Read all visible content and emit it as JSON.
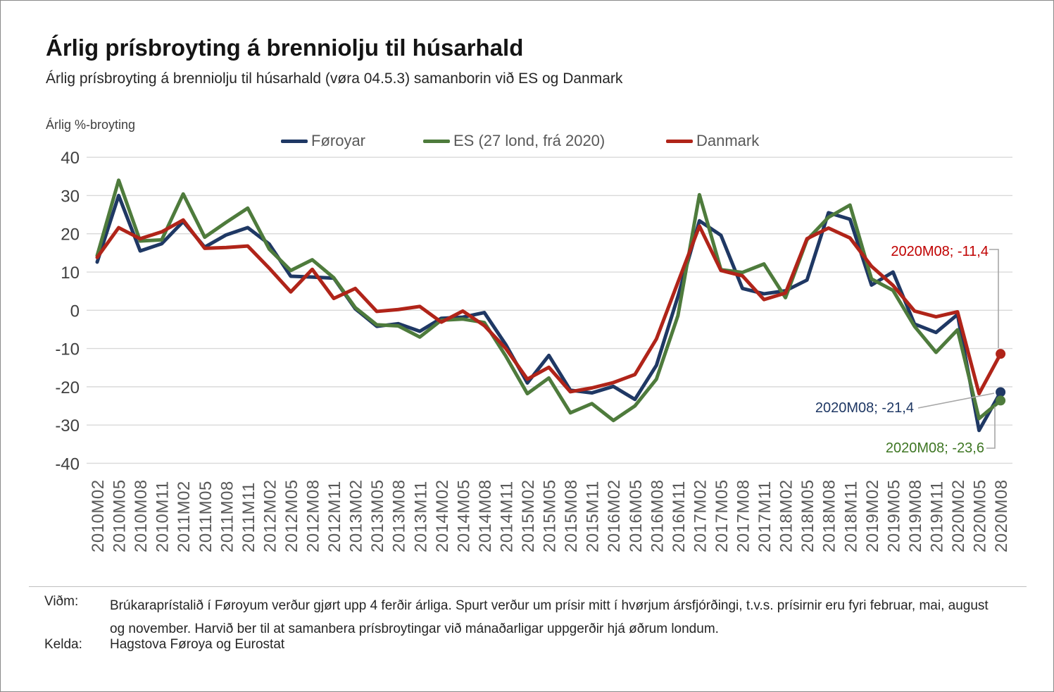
{
  "header": {
    "title": "Árlig prísbroyting á brenniolju til húsarhald",
    "subtitle": "Árlig prísbroyting á brenniolju til húsarhald (vøra 04.5.3) samanborin við ES og Danmark"
  },
  "chart_data": {
    "type": "line",
    "title": "Árlig prísbroyting á brenniolju til húsarhald",
    "ylabel": "Árlig %-broyting",
    "xlabel": "",
    "ylim": [
      -40,
      40
    ],
    "yticks": [
      40,
      30,
      20,
      10,
      0,
      -10,
      -20,
      -30,
      -40
    ],
    "grid": true,
    "legend_position": "top",
    "categories": [
      "2010M02",
      "2010M05",
      "2010M08",
      "2010M11",
      "2011M02",
      "2011M05",
      "2011M08",
      "2011M11",
      "2012M02",
      "2012M05",
      "2012M08",
      "2012M11",
      "2013M02",
      "2013M05",
      "2013M08",
      "2013M11",
      "2014M02",
      "2014M05",
      "2014M08",
      "2014M11",
      "2015M02",
      "2015M05",
      "2015M08",
      "2015M11",
      "2016M02",
      "2016M05",
      "2016M08",
      "2016M11",
      "2017M02",
      "2017M05",
      "2017M08",
      "2017M11",
      "2018M02",
      "2018M05",
      "2018M08",
      "2018M11",
      "2019M02",
      "2019M05",
      "2019M08",
      "2019M11",
      "2020M02",
      "2020M05",
      "2020M08"
    ],
    "series": [
      {
        "name": "Føroyar",
        "color": "#1F3864",
        "values": [
          12.6,
          30.0,
          15.5,
          17.4,
          23.2,
          16.5,
          19.7,
          21.6,
          17.3,
          8.9,
          8.7,
          8.4,
          0.4,
          -4.2,
          -3.5,
          -5.5,
          -2.1,
          -1.8,
          -0.6,
          -9.0,
          -19.0,
          -11.8,
          -20.9,
          -21.6,
          -19.9,
          -23.3,
          -14.4,
          3.6,
          23.4,
          19.6,
          5.7,
          4.3,
          5.1,
          7.9,
          25.5,
          23.8,
          6.6,
          10.0,
          -3.6,
          -5.8,
          -1.1,
          -31.4,
          -21.4
        ]
      },
      {
        "name": "ES (27 lond, frá 2020)",
        "color": "#4E7B3C",
        "values": [
          14.3,
          34.0,
          18.1,
          18.4,
          30.4,
          19.1,
          23.0,
          26.7,
          16.0,
          10.4,
          13.2,
          8.5,
          0.7,
          -3.8,
          -4.1,
          -7.0,
          -2.6,
          -2.3,
          -3.2,
          -12.0,
          -21.8,
          -17.7,
          -26.8,
          -24.4,
          -28.8,
          -25.0,
          -18.0,
          -1.4,
          30.2,
          10.6,
          9.9,
          12.1,
          3.3,
          18.4,
          24.3,
          27.5,
          8.2,
          5.2,
          -4.2,
          -11.0,
          -5.1,
          -28.3,
          -23.6
        ]
      },
      {
        "name": "Danmark",
        "color": "#B02419",
        "values": [
          13.8,
          21.6,
          18.7,
          20.5,
          23.6,
          16.2,
          16.4,
          16.8,
          11.0,
          4.8,
          10.7,
          3.1,
          5.7,
          -0.3,
          0.2,
          1.0,
          -3.1,
          -0.2,
          -4.0,
          -10.0,
          -18.0,
          -14.9,
          -21.3,
          -20.3,
          -18.9,
          -16.8,
          -7.5,
          7.3,
          22.0,
          10.4,
          9.0,
          2.8,
          4.5,
          18.7,
          21.5,
          18.9,
          11.5,
          6.5,
          -0.2,
          -1.7,
          -0.4,
          -21.8,
          -11.4
        ]
      }
    ],
    "callouts": [
      {
        "text": "2020M08; -11,4",
        "series": "Danmark",
        "color": "#C00000"
      },
      {
        "text": "2020M08; -21,4",
        "series": "Føroyar",
        "color": "#1F3864"
      },
      {
        "text": "2020M08; -23,6",
        "series": "ES (27 lond, frá 2020)",
        "color": "#3E7623"
      }
    ]
  },
  "footer": {
    "note_label": "Viðm:",
    "note": "Brúkaraprístalið í Føroyum verður gjørt upp 4 ferðir árliga. Spurt verður um prísir mitt í hvørjum ársfjórðingi, t.v.s. prísirnir eru fyri februar, mai, august og november. Harvið ber til at samanbera prísbroytingar við mánaðarligar uppgerðir hjá øðrum londum.",
    "source_label": "Kelda:",
    "source": "Hagstova Føroya og Eurostat"
  }
}
